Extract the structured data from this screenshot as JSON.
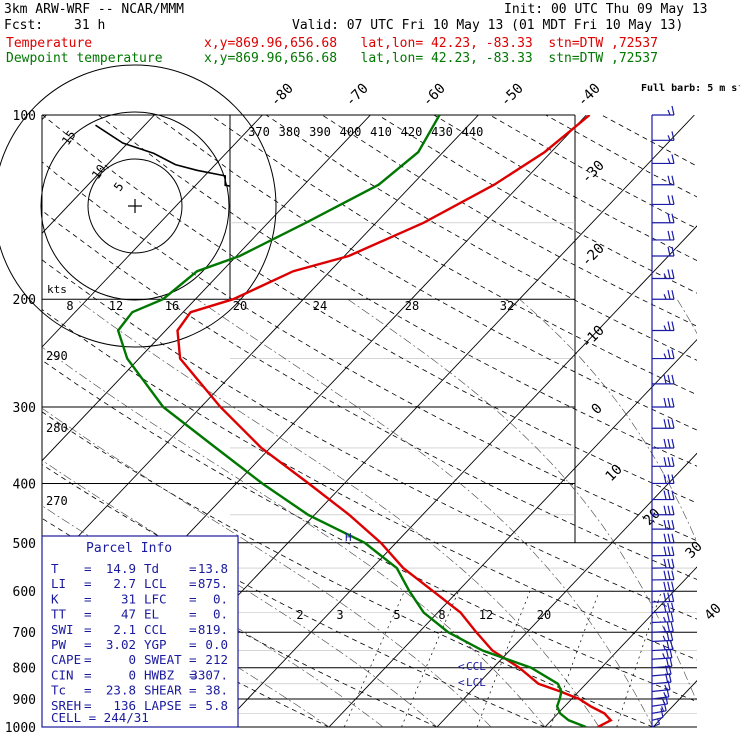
{
  "header": {
    "model": "3km ARW-WRF -- NCAR/MMM",
    "init": "Init: 00 UTC Thu 09 May 13",
    "fcst_label": "Fcst:",
    "fcst_value": "31 h",
    "valid": "Valid: 07 UTC Fri 10 May 13 (01 MDT Fri 10 May 13)",
    "temp_label": "Temperature",
    "temp_loc": "x,y=869.96,656.68   lat,lon= 42.23, -83.33  stn=DTW ,72537",
    "dew_label": "Dewpoint temperature",
    "dew_loc": "x,y=869.96,656.68   lat,lon= 42.23, -83.33  stn=DTW ,72537"
  },
  "colors": {
    "temperature": "#dd0000",
    "dewpoint": "#007700",
    "parcel_box": "#1a1a9e",
    "wind": "#1a1aaa",
    "hodograph_trace": "#000000"
  },
  "chart_data": {
    "type": "line",
    "title": "Skew-T log-P sounding",
    "pressure_levels": [
      "100",
      "200",
      "300",
      "400",
      "500",
      "600",
      "700",
      "800",
      "900",
      "1000"
    ],
    "pressure_values": [
      100,
      200,
      300,
      400,
      500,
      600,
      700,
      800,
      900,
      1000
    ],
    "skew_temp_labels": [
      "-80",
      "-70",
      "-60",
      "-50",
      "-40",
      "-30",
      "-20",
      "-10",
      "0",
      "10",
      "20",
      "30",
      "40"
    ],
    "skew_temp_values": [
      -80,
      -70,
      -60,
      -50,
      -40,
      -30,
      -20,
      -10,
      0,
      10,
      20,
      30,
      40
    ],
    "theta_e_labels": [
      "370",
      "380",
      "390",
      "400",
      "410",
      "420",
      "430",
      "440"
    ],
    "hodo_speed_labels": [
      "8",
      "12",
      "16",
      "20",
      "24",
      "28",
      "32"
    ],
    "hodo_kts_label": "kts",
    "hodo_ring_labels": [
      "5",
      "10",
      "15"
    ],
    "theta_labels": [
      "290",
      "280",
      "270"
    ],
    "mixing_ratio_labels": [
      "2",
      "3",
      "5",
      "8",
      "12",
      "20"
    ],
    "wind_legend": "Full barb: 5 m s⁻¹",
    "lcl_label": "LCL",
    "ccl_label": "CCL",
    "parcel_marker": "H",
    "series": [
      {
        "name": "Temperature",
        "points": [
          [
            1000,
            14.9
          ],
          [
            975,
            15.5
          ],
          [
            950,
            14.3
          ],
          [
            925,
            12.4
          ],
          [
            900,
            10.7
          ],
          [
            875,
            8.3
          ],
          [
            850,
            5.6
          ],
          [
            800,
            2.4
          ],
          [
            750,
            -1.6
          ],
          [
            700,
            -4.7
          ],
          [
            650,
            -7.9
          ],
          [
            600,
            -12.3
          ],
          [
            550,
            -17.1
          ],
          [
            500,
            -21.4
          ],
          [
            450,
            -26.8
          ],
          [
            400,
            -33.3
          ],
          [
            350,
            -40.8
          ],
          [
            300,
            -48.2
          ],
          [
            250,
            -56.2
          ],
          [
            225,
            -58.9
          ],
          [
            210,
            -59.3
          ],
          [
            200,
            -56.5
          ],
          [
            180,
            -53.4
          ],
          [
            170,
            -49.6
          ],
          [
            150,
            -45.6
          ],
          [
            130,
            -42.4
          ],
          [
            115,
            -40.6
          ],
          [
            100,
            -39.7
          ]
        ]
      },
      {
        "name": "Dewpoint",
        "points": [
          [
            1000,
            13.8
          ],
          [
            975,
            11.6
          ],
          [
            950,
            10.2
          ],
          [
            925,
            9.3
          ],
          [
            900,
            8.9
          ],
          [
            875,
            8.4
          ],
          [
            850,
            7.4
          ],
          [
            800,
            3.5
          ],
          [
            750,
            -2.5
          ],
          [
            700,
            -7.3
          ],
          [
            650,
            -11.3
          ],
          [
            600,
            -14.5
          ],
          [
            550,
            -17.7
          ],
          [
            500,
            -22.9
          ],
          [
            450,
            -30.6
          ],
          [
            400,
            -37.6
          ],
          [
            350,
            -45.0
          ],
          [
            300,
            -53.5
          ],
          [
            250,
            -61.1
          ],
          [
            225,
            -64.4
          ],
          [
            210,
            -64.7
          ],
          [
            200,
            -63.0
          ],
          [
            180,
            -62.3
          ],
          [
            170,
            -59.7
          ],
          [
            150,
            -56.5
          ],
          [
            130,
            -53.1
          ],
          [
            115,
            -52.3
          ],
          [
            100,
            -53.6
          ]
        ]
      }
    ],
    "hodograph": [
      [
        -4.2,
        -8.6
      ],
      [
        -1.3,
        -6.7
      ],
      [
        2.0,
        -5.6
      ],
      [
        4.3,
        -4.4
      ],
      [
        6.6,
        -3.8
      ],
      [
        9.6,
        -3.2
      ],
      [
        9.6,
        -2.2
      ],
      [
        10.9,
        -2.0
      ],
      [
        11.9,
        -1.8
      ],
      [
        11.6,
        -1.7
      ],
      [
        11.6,
        -2.7
      ],
      [
        11.2,
        -4.5
      ],
      [
        11.6,
        -3.4
      ],
      [
        11.2,
        -2.7
      ],
      [
        12.2,
        -3.1
      ],
      [
        13.2,
        -3.1
      ],
      [
        14.2,
        -2.2
      ],
      [
        13.9,
        -3.2
      ],
      [
        14.5,
        -1.7
      ]
    ],
    "wind_barbs": [
      {
        "p": 1000,
        "speed": 5,
        "dir": 200
      },
      {
        "p": 975,
        "speed": 10,
        "dir": 210
      },
      {
        "p": 950,
        "speed": 15,
        "dir": 220
      },
      {
        "p": 925,
        "speed": 15,
        "dir": 225
      },
      {
        "p": 900,
        "speed": 15,
        "dir": 230
      },
      {
        "p": 875,
        "speed": 15,
        "dir": 235
      },
      {
        "p": 850,
        "speed": 20,
        "dir": 240
      },
      {
        "p": 825,
        "speed": 20,
        "dir": 240
      },
      {
        "p": 800,
        "speed": 20,
        "dir": 245
      },
      {
        "p": 775,
        "speed": 25,
        "dir": 245
      },
      {
        "p": 750,
        "speed": 25,
        "dir": 250
      },
      {
        "p": 725,
        "speed": 25,
        "dir": 250
      },
      {
        "p": 700,
        "speed": 25,
        "dir": 255
      },
      {
        "p": 675,
        "speed": 25,
        "dir": 255
      },
      {
        "p": 650,
        "speed": 30,
        "dir": 260
      },
      {
        "p": 625,
        "speed": 30,
        "dir": 260
      },
      {
        "p": 600,
        "speed": 30,
        "dir": 260
      },
      {
        "p": 575,
        "speed": 30,
        "dir": 265
      },
      {
        "p": 550,
        "speed": 30,
        "dir": 265
      },
      {
        "p": 525,
        "speed": 30,
        "dir": 265
      },
      {
        "p": 500,
        "speed": 30,
        "dir": 270
      },
      {
        "p": 475,
        "speed": 30,
        "dir": 270
      },
      {
        "p": 450,
        "speed": 30,
        "dir": 270
      },
      {
        "p": 425,
        "speed": 30,
        "dir": 270
      },
      {
        "p": 400,
        "speed": 30,
        "dir": 270
      },
      {
        "p": 375,
        "speed": 30,
        "dir": 270
      },
      {
        "p": 350,
        "speed": 30,
        "dir": 270
      },
      {
        "p": 325,
        "speed": 30,
        "dir": 270
      },
      {
        "p": 300,
        "speed": 30,
        "dir": 270
      },
      {
        "p": 275,
        "speed": 30,
        "dir": 270
      },
      {
        "p": 250,
        "speed": 25,
        "dir": 270
      },
      {
        "p": 225,
        "speed": 25,
        "dir": 270
      },
      {
        "p": 200,
        "speed": 25,
        "dir": 270
      },
      {
        "p": 185,
        "speed": 25,
        "dir": 270
      },
      {
        "p": 170,
        "speed": 20,
        "dir": 270
      },
      {
        "p": 160,
        "speed": 20,
        "dir": 270
      },
      {
        "p": 150,
        "speed": 20,
        "dir": 270
      },
      {
        "p": 140,
        "speed": 20,
        "dir": 270
      },
      {
        "p": 130,
        "speed": 20,
        "dir": 270
      },
      {
        "p": 120,
        "speed": 15,
        "dir": 270
      },
      {
        "p": 110,
        "speed": 15,
        "dir": 270
      },
      {
        "p": 100,
        "speed": 15,
        "dir": 270
      }
    ]
  },
  "parcel_info": {
    "title": "Parcel Info",
    "rows": [
      {
        "l1": "T",
        "v1": "14.9",
        "l2": "Td",
        "v2": "13.8"
      },
      {
        "l1": "LI",
        "v1": "2.7",
        "l2": "LCL",
        "v2": "875."
      },
      {
        "l1": "K",
        "v1": "31",
        "l2": "LFC",
        "v2": "0."
      },
      {
        "l1": "TT",
        "v1": "47",
        "l2": "EL",
        "v2": "0."
      },
      {
        "l1": "SWI",
        "v1": "2.1",
        "l2": "CCL",
        "v2": "819."
      },
      {
        "l1": "PW",
        "v1": "3.02",
        "l2": "YGP",
        "v2": "0.0"
      },
      {
        "l1": "CAPE",
        "v1": "0",
        "l2": "SWEAT",
        "v2": "212"
      },
      {
        "l1": "CIN",
        "v1": "0",
        "l2": "HWBZ",
        "v2": "3307."
      },
      {
        "l1": "Tc",
        "v1": "23.8",
        "l2": "SHEAR",
        "v2": "38."
      },
      {
        "l1": "SREH",
        "v1": "136",
        "l2": "LAPSE",
        "v2": "5.8"
      }
    ],
    "cell": "CELL = 244/31"
  }
}
